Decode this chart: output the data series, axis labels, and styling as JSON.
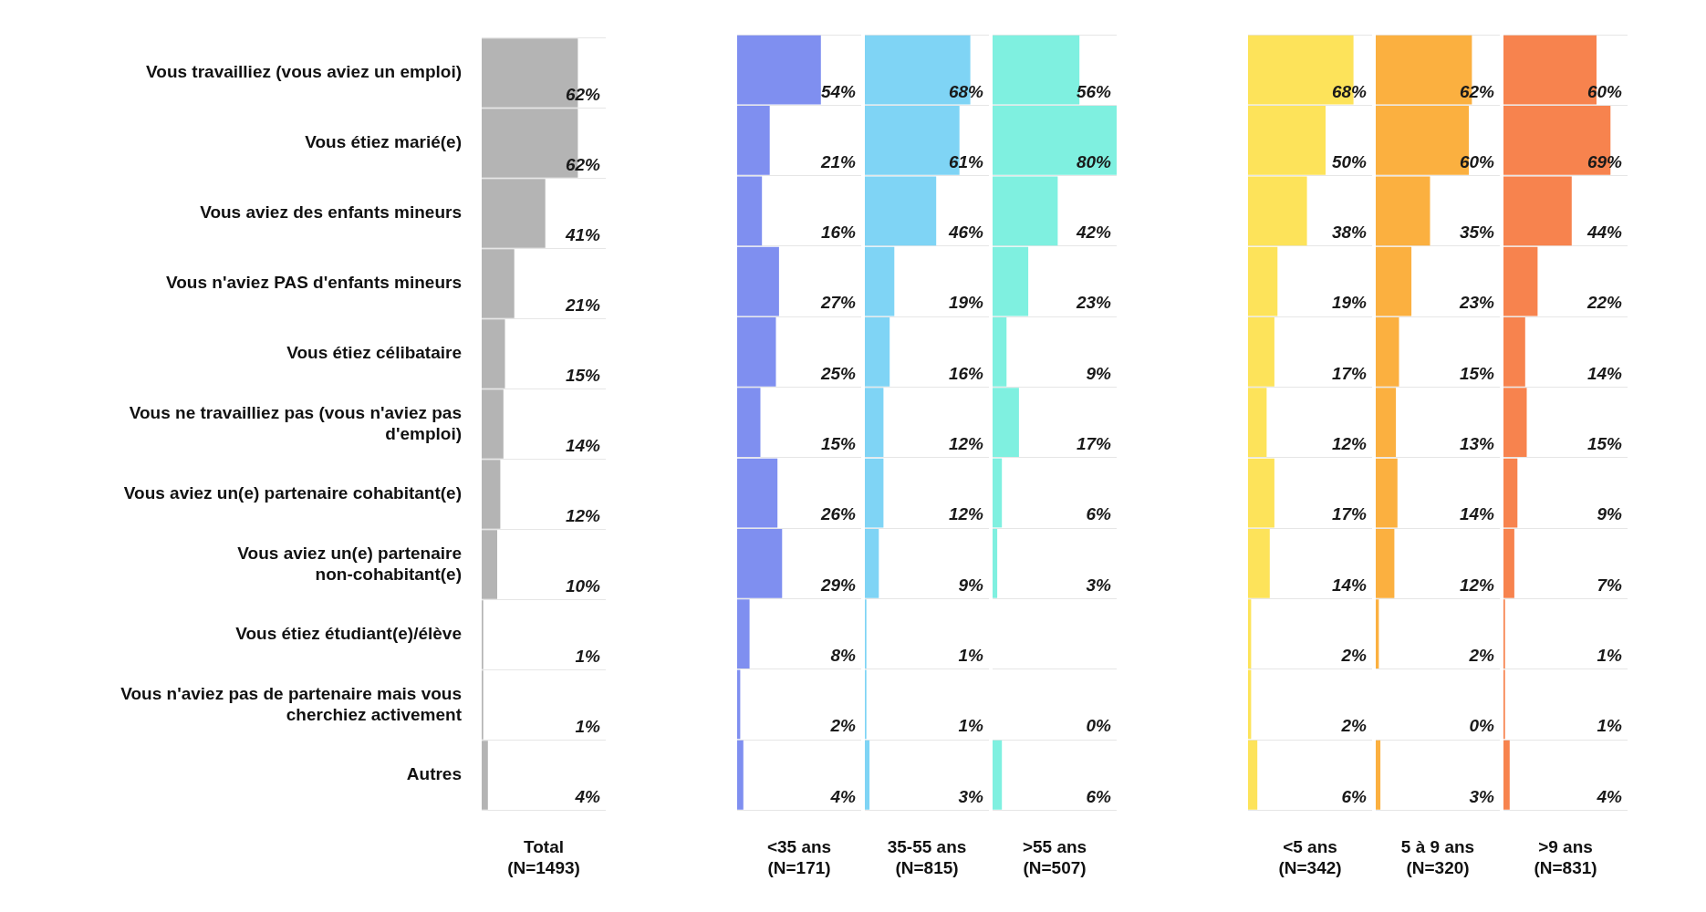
{
  "chart_data": [
    {
      "type": "bar",
      "orientation": "horizontal",
      "xlabel": "Total\n(N=1493)",
      "categories": [
        "Vous travailliez (vous aviez un emploi)",
        "Vous étiez marié(e)",
        "Vous aviez des enfants mineurs",
        "Vous n'aviez PAS d'enfants mineurs",
        "Vous étiez célibataire",
        "Vous ne travailliez pas (vous n'aviez pas d'emploi)",
        "Vous aviez un(e) partenaire cohabitant(e)",
        "Vous aviez un(e) partenaire non-cohabitant(e)",
        "Vous étiez étudiant(e)/élève",
        "Vous n'aviez pas de partenaire mais vous cherchiez activement",
        "Autres"
      ],
      "values": [
        62,
        62,
        41,
        21,
        15,
        14,
        12,
        10,
        1,
        1,
        4
      ],
      "value_labels": [
        "62%",
        "62%",
        "41%",
        "21%",
        "15%",
        "14%",
        "12%",
        "10%",
        "1%",
        "1%",
        "4%"
      ],
      "color": "#b4b4b4",
      "grid": "y",
      "tick_labels": "y",
      "legend": false
    },
    {
      "type": "bar",
      "orientation": "horizontal",
      "xlabel": "<35 ans\n(N=171)",
      "categories": [
        null,
        null,
        null,
        null,
        null,
        null,
        null,
        null,
        null,
        null,
        null
      ],
      "values": [
        54,
        21,
        16,
        27,
        25,
        15,
        26,
        29,
        8,
        2,
        4
      ],
      "value_labels": [
        "54%",
        "21%",
        "16%",
        "27%",
        "25%",
        "15%",
        "26%",
        "29%",
        "8%",
        "2%",
        "4%"
      ],
      "color": "#7f8ff0",
      "grid": "y",
      "tick_labels": false,
      "legend": false
    },
    {
      "type": "bar",
      "orientation": "horizontal",
      "xlabel": "35-55 ans\n(N=815)",
      "categories": [
        null,
        null,
        null,
        null,
        null,
        null,
        null,
        null,
        null,
        null,
        null
      ],
      "values": [
        68,
        61,
        46,
        19,
        16,
        12,
        12,
        9,
        1,
        1,
        3
      ],
      "value_labels": [
        "68%",
        "61%",
        "46%",
        "19%",
        "16%",
        "12%",
        "12%",
        "9%",
        "1%",
        "1%",
        "3%"
      ],
      "color": "#7fd4f5",
      "grid": "y",
      "tick_labels": false,
      "legend": false
    },
    {
      "type": "bar",
      "orientation": "horizontal",
      "xlabel": ">55 ans\n(N=507)",
      "categories": [
        null,
        null,
        null,
        null,
        null,
        null,
        null,
        null,
        null,
        null,
        null
      ],
      "values": [
        56,
        80,
        42,
        23,
        9,
        17,
        6,
        3,
        null,
        0,
        6
      ],
      "value_labels": [
        "56%",
        "80%",
        "42%",
        "23%",
        "9%",
        "17%",
        "6%",
        "3%",
        null,
        "0%",
        "6%"
      ],
      "color": "#7ff0e0",
      "grid": "y",
      "tick_labels": false,
      "legend": false
    },
    {
      "type": "bar",
      "orientation": "horizontal",
      "xlabel": "<5 ans\n(N=342)",
      "categories": [
        null,
        null,
        null,
        null,
        null,
        null,
        null,
        null,
        null,
        null,
        null
      ],
      "values": [
        68,
        50,
        38,
        19,
        17,
        12,
        17,
        14,
        2,
        2,
        6
      ],
      "value_labels": [
        "68%",
        "50%",
        "38%",
        "19%",
        "17%",
        "12%",
        "17%",
        "14%",
        "2%",
        "2%",
        "6%"
      ],
      "color": "#fde35a",
      "grid": "y",
      "tick_labels": false,
      "legend": false
    },
    {
      "type": "bar",
      "orientation": "horizontal",
      "xlabel": "5 à 9 ans\n(N=320)",
      "categories": [
        null,
        null,
        null,
        null,
        null,
        null,
        null,
        null,
        null,
        null,
        null
      ],
      "values": [
        62,
        60,
        35,
        23,
        15,
        13,
        14,
        12,
        2,
        0,
        3
      ],
      "value_labels": [
        "62%",
        "60%",
        "35%",
        "23%",
        "15%",
        "13%",
        "14%",
        "12%",
        "2%",
        "0%",
        "3%"
      ],
      "color": "#fbb040",
      "grid": "y",
      "tick_labels": false,
      "legend": false
    },
    {
      "type": "bar",
      "orientation": "horizontal",
      "xlabel": ">9 ans\n(N=831)",
      "categories": [
        null,
        null,
        null,
        null,
        null,
        null,
        null,
        null,
        null,
        null,
        null
      ],
      "values": [
        60,
        69,
        44,
        22,
        14,
        15,
        9,
        7,
        1,
        1,
        4
      ],
      "value_labels": [
        "60%",
        "69%",
        "44%",
        "22%",
        "14%",
        "15%",
        "9%",
        "7%",
        "1%",
        "1%",
        "4%"
      ],
      "color": "#f7834e",
      "grid": "y",
      "tick_labels": false,
      "legend": false
    }
  ]
}
